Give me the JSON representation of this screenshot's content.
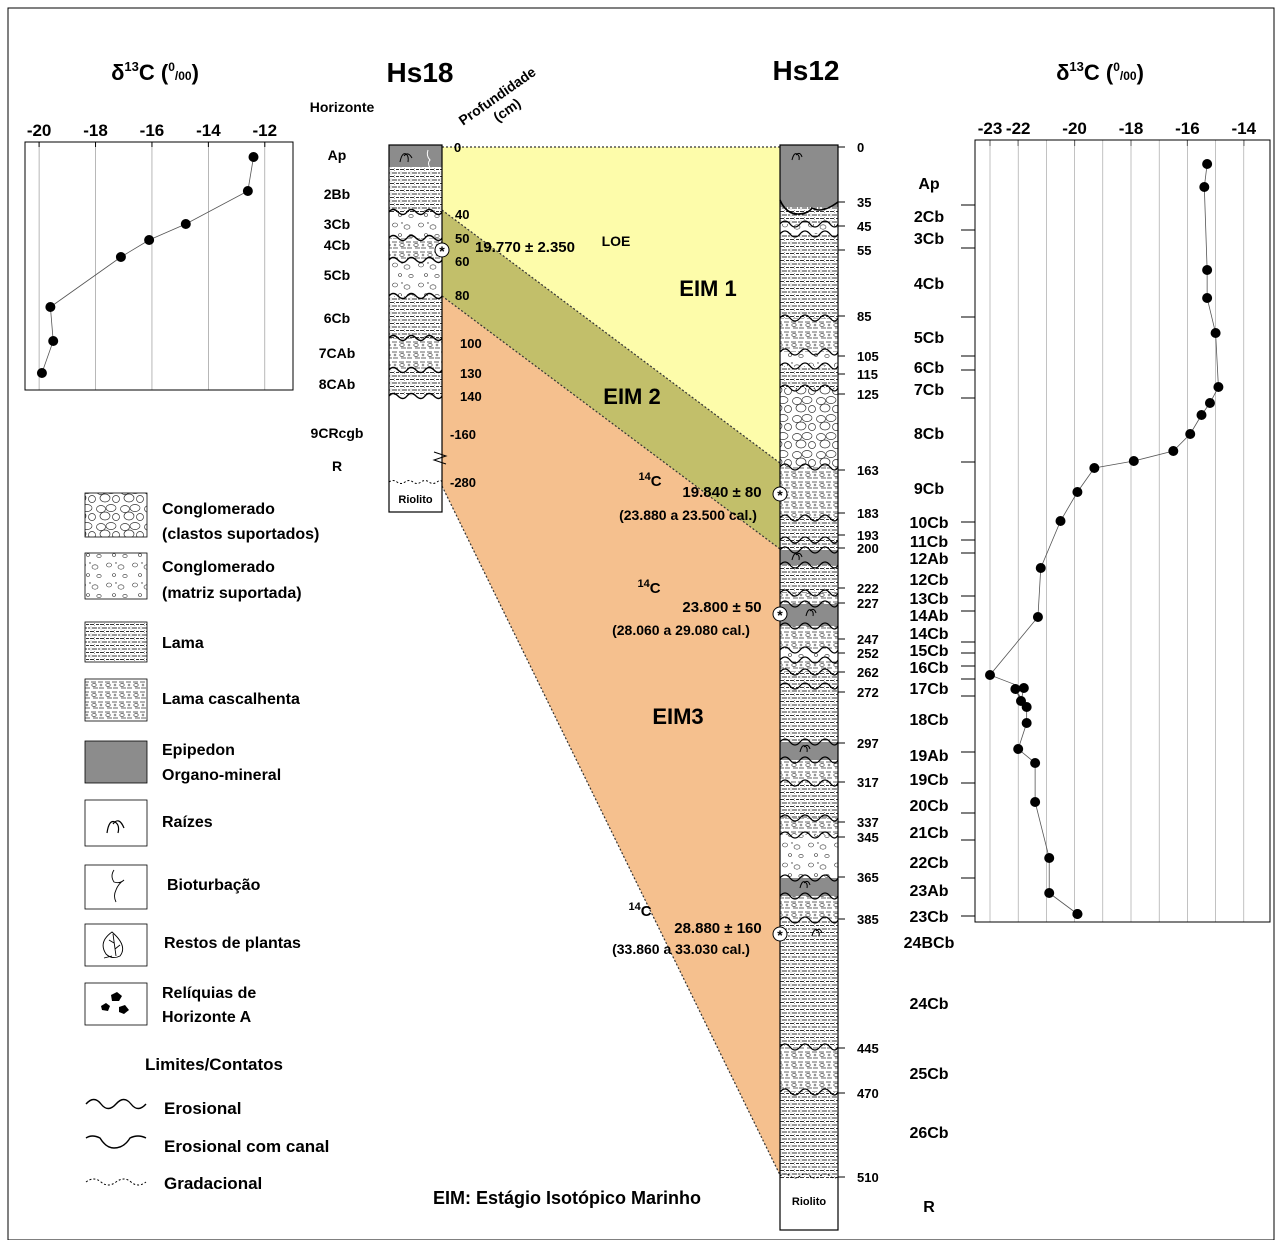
{
  "colors": {
    "eim1": "#fdfcaa",
    "eim2": "#c2bf6a",
    "eim3": "#f5c08e",
    "epipedon": "#8c8c8c",
    "frame": "#000000"
  },
  "left_plot": {
    "title": "δ13C (0/00)",
    "title_main": "δ",
    "title_sup": "13",
    "title_c": "C (",
    "title_unit_sup": "0",
    "title_unit_sub": "/00",
    "title_end": ")",
    "ticks": [
      "-20",
      "-18",
      "-16",
      "-14",
      "-12"
    ]
  },
  "right_plot": {
    "title_main": "δ",
    "title_sup": "13",
    "title_c": "C (",
    "title_unit_sup": "0",
    "title_unit_sub": "/00",
    "title_end": ")",
    "ticks": [
      "-23",
      "-22",
      "-20",
      "-18",
      "-16",
      "-14"
    ]
  },
  "hs18": {
    "title": "Hs18",
    "horizonte_label": "Horizonte",
    "profundidade_label": "Profundidade",
    "cm_label": "(cm)",
    "horizons": [
      "Ap",
      "2Bb",
      "3Cb",
      "4Cb",
      "5Cb",
      "6Cb",
      "7CAb",
      "8CAb",
      "9CRcgb",
      "R"
    ],
    "depths": [
      "0",
      "40",
      "50",
      "60",
      "80",
      "100",
      "130",
      "140",
      "-160",
      "-280"
    ],
    "base_label": "Riolito",
    "loe_date": "19.770 ± 2.350",
    "loe_label": "LOE"
  },
  "hs12": {
    "title": "Hs12",
    "depths": [
      "0",
      "35",
      "45",
      "55",
      "85",
      "105",
      "115",
      "125",
      "163",
      "183",
      "193",
      "200",
      "222",
      "227",
      "247",
      "252",
      "262",
      "272",
      "297",
      "317",
      "337",
      "345",
      "365",
      "385",
      "445",
      "470",
      "510"
    ],
    "horizons": [
      "Ap",
      "2Cb",
      "3Cb",
      "4Cb",
      "5Cb",
      "6Cb",
      "7Cb",
      "8Cb",
      "9Cb",
      "10Cb",
      "11Cb",
      "12Ab",
      "12Cb",
      "13Cb",
      "14Ab",
      "14Cb",
      "15Cb",
      "16Cb",
      "17Cb",
      "18Cb",
      "19Ab",
      "19Cb",
      "20Cb",
      "21Cb",
      "22Cb",
      "23Ab",
      "23Cb",
      "24BCb",
      "24Cb",
      "25Cb",
      "26Cb",
      "R"
    ],
    "base_label": "Riolito"
  },
  "stages": {
    "eim1": "EIM 1",
    "eim2": "EIM 2",
    "eim3": "EIM3",
    "caption": "EIM: Estágio Isotópico Marinho"
  },
  "dates": [
    {
      "iso": "14",
      "c": "C",
      "value": "19.840 ± 80",
      "cal": "(23.880 a 23.500 cal.)"
    },
    {
      "iso": "14",
      "c": "C",
      "value": "23.800 ± 50",
      "cal": "(28.060 a 29.080 cal.)"
    },
    {
      "iso": "14",
      "c": "C",
      "value": "28.880 ± 160",
      "cal": "(33.860 a 33.030 cal.)"
    }
  ],
  "legend": {
    "items": [
      {
        "icon": "conglomerate-clast-icon",
        "line1": "Conglomerado",
        "line2": "(clastos suportados)"
      },
      {
        "icon": "conglomerate-matrix-icon",
        "line1": "Conglomerado",
        "line2": "(matriz suportada)"
      },
      {
        "icon": "mud-icon",
        "line1": "Lama",
        "line2": ""
      },
      {
        "icon": "gravelly-mud-icon",
        "line1": "Lama cascalhenta",
        "line2": ""
      },
      {
        "icon": "epipedon-icon",
        "line1": "Epipedon",
        "line2": "Organo-mineral"
      },
      {
        "icon": "roots-icon",
        "line1": "Raízes",
        "line2": ""
      },
      {
        "icon": "bioturbation-icon",
        "line1": "Bioturbação",
        "line2": ""
      },
      {
        "icon": "plant-remains-icon",
        "line1": "Restos de plantas",
        "line2": ""
      },
      {
        "icon": "a-horizon-relics-icon",
        "line1": "Relíquias de",
        "line2": "Horizonte A"
      }
    ],
    "contacts_title": "Limites/Contatos",
    "contacts": [
      "Erosional",
      "Erosional com canal",
      "Gradacional"
    ]
  },
  "chart_data": [
    {
      "type": "scatter",
      "title": "δ13C (0/00)",
      "xlim": [
        -20.5,
        -11
      ],
      "x_ticks": [
        -20,
        -18,
        -16,
        -14,
        -12
      ],
      "y_axis": "depth (Hs18 horizons, top to bottom)",
      "points": [
        {
          "horizon": "Ap",
          "x": -12.4
        },
        {
          "horizon": "2Bb",
          "x": -12.6
        },
        {
          "horizon": "3Cb",
          "x": -14.8
        },
        {
          "horizon": "4Cb",
          "x": -16.1
        },
        {
          "horizon": "5Cb",
          "x": -17.1
        },
        {
          "horizon": "6Cb",
          "x": -19.6
        },
        {
          "horizon": "7CAb",
          "x": -19.5
        },
        {
          "horizon": "8CAb",
          "x": -19.9
        }
      ]
    },
    {
      "type": "scatter",
      "title": "δ13C (0/00)",
      "xlim": [
        -23,
        -14
      ],
      "x_ticks": [
        -23,
        -22,
        -20,
        -18,
        -16,
        -14
      ],
      "y_axis": "depth (Hs12 horizons, top to bottom)",
      "points": [
        {
          "horizon": "Ap",
          "x": -15.3
        },
        {
          "horizon": "Ap",
          "x": -15.4
        },
        {
          "horizon": "4Cb",
          "x": -15.3
        },
        {
          "horizon": "4Cb",
          "x": -15.3
        },
        {
          "horizon": "5Cb",
          "x": -15.0
        },
        {
          "horizon": "7Cb",
          "x": -14.9
        },
        {
          "horizon": "7Cb",
          "x": -15.2
        },
        {
          "horizon": "8Cb",
          "x": -15.5
        },
        {
          "horizon": "8Cb",
          "x": -15.9
        },
        {
          "horizon": "8Cb",
          "x": -16.5
        },
        {
          "horizon": "8Cb",
          "x": -17.9
        },
        {
          "horizon": "9Cb",
          "x": -19.3
        },
        {
          "horizon": "9Cb",
          "x": -19.9
        },
        {
          "horizon": "9Cb",
          "x": -20.5
        },
        {
          "horizon": "10Cb",
          "x": -21.2
        },
        {
          "horizon": "12Cb",
          "x": -21.3
        },
        {
          "horizon": "14Ab",
          "x": -23.0
        },
        {
          "horizon": "15Cb",
          "x": -21.8
        },
        {
          "horizon": "16Cb",
          "x": -21.9
        },
        {
          "horizon": "16Cb",
          "x": -22.1
        },
        {
          "horizon": "17Cb",
          "x": -21.7
        },
        {
          "horizon": "17Cb",
          "x": -21.7
        },
        {
          "horizon": "18Cb",
          "x": -22.0
        },
        {
          "horizon": "19Ab",
          "x": -21.4
        },
        {
          "horizon": "19Cb",
          "x": -21.4
        },
        {
          "horizon": "20Cb",
          "x": -20.9
        },
        {
          "horizon": "22Cb",
          "x": -20.9
        },
        {
          "horizon": "23Ab",
          "x": -19.9
        },
        {
          "horizon": "23Cb",
          "x": -19.9
        }
      ]
    }
  ]
}
